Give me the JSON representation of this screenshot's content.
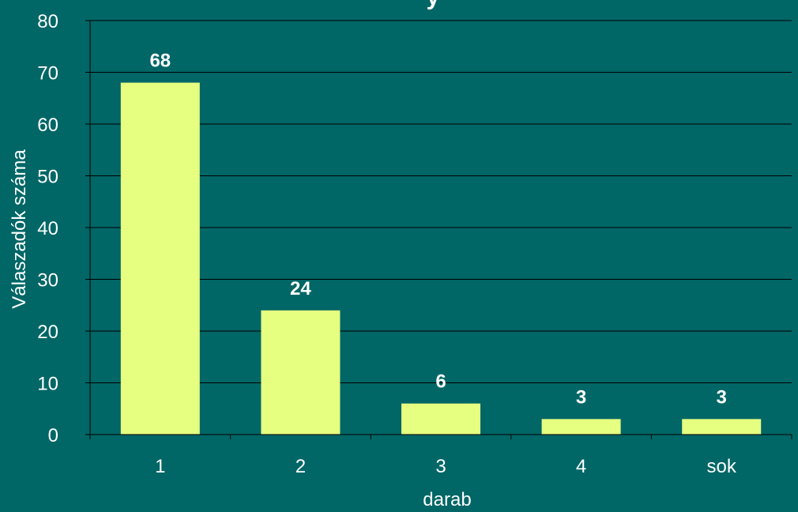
{
  "colors": {
    "background": "#006666",
    "bar": "#e6ff80",
    "axis": "#000000",
    "gridline": "#000000",
    "text": "#ffffff"
  },
  "chart_data": {
    "type": "bar",
    "title_fragment": "y",
    "categories": [
      "1",
      "2",
      "3",
      "4",
      "sok"
    ],
    "values": [
      68,
      24,
      6,
      3,
      3
    ],
    "data_labels": [
      "68",
      "24",
      "6",
      "3",
      "3"
    ],
    "xlabel": "darab",
    "ylabel": "Válaszadók száma",
    "ylim": [
      0,
      80
    ],
    "yticks": [
      "0",
      "10",
      "20",
      "30",
      "40",
      "50",
      "60",
      "70",
      "80"
    ],
    "grid": true,
    "legend": "none"
  }
}
